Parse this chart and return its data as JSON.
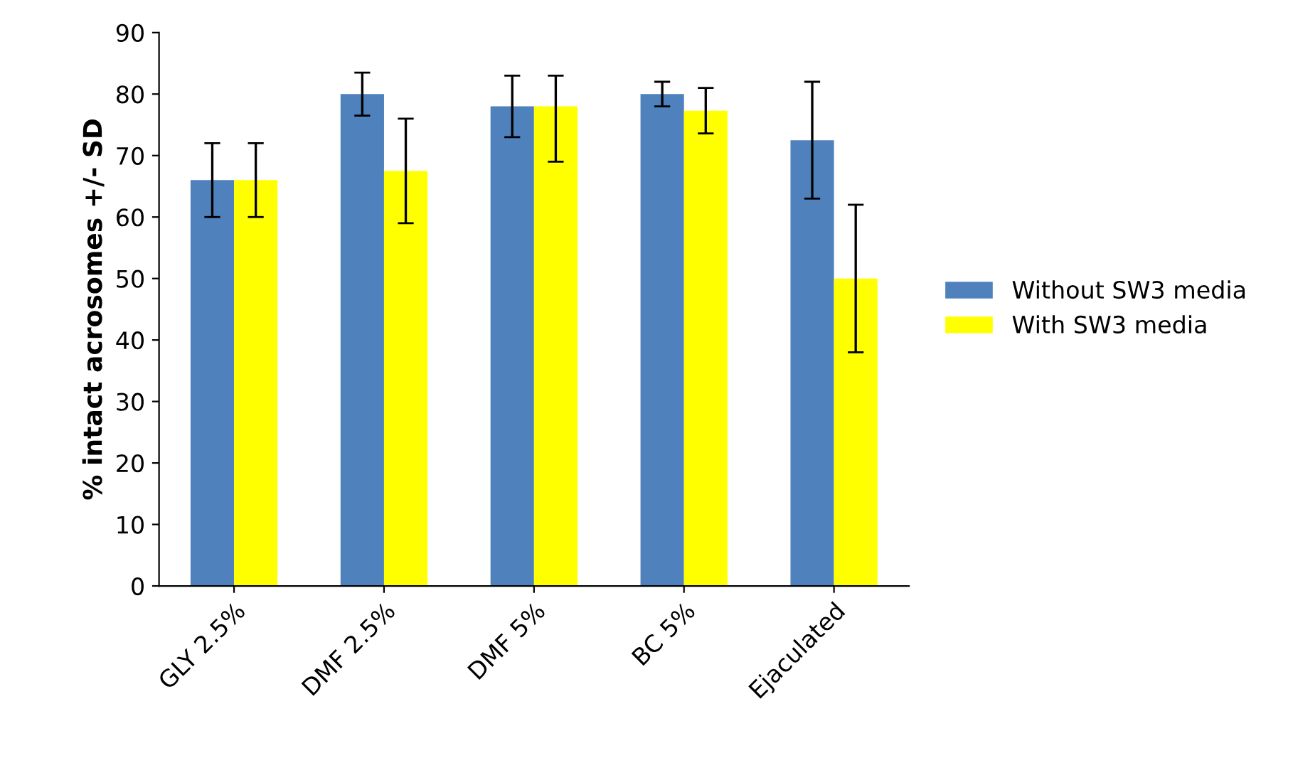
{
  "chart_data": {
    "type": "bar",
    "ylabel": "% intact acrosomes +/- SD",
    "categories": [
      "GLY 2.5%",
      "DMF 2.5%",
      "DMF 5%",
      "BC 5%",
      "Ejaculated"
    ],
    "series": [
      {
        "name": "Without SW3 media",
        "color": "#4f81bd",
        "values": [
          66,
          80,
          78,
          80,
          72.5
        ],
        "errors": [
          6,
          3.5,
          5,
          2,
          9.5
        ]
      },
      {
        "name": "With SW3 media",
        "color": "#ffff00",
        "values": [
          66,
          67.5,
          78,
          77.3,
          50
        ],
        "errors": [
          6,
          8.5,
          [
            69,
            83
          ],
          3.7,
          12
        ]
      }
    ],
    "ylim": [
      0,
      90
    ],
    "yticks": [
      0,
      10,
      20,
      30,
      40,
      50,
      60,
      70,
      80,
      90
    ],
    "grid": false,
    "legend": "right"
  }
}
